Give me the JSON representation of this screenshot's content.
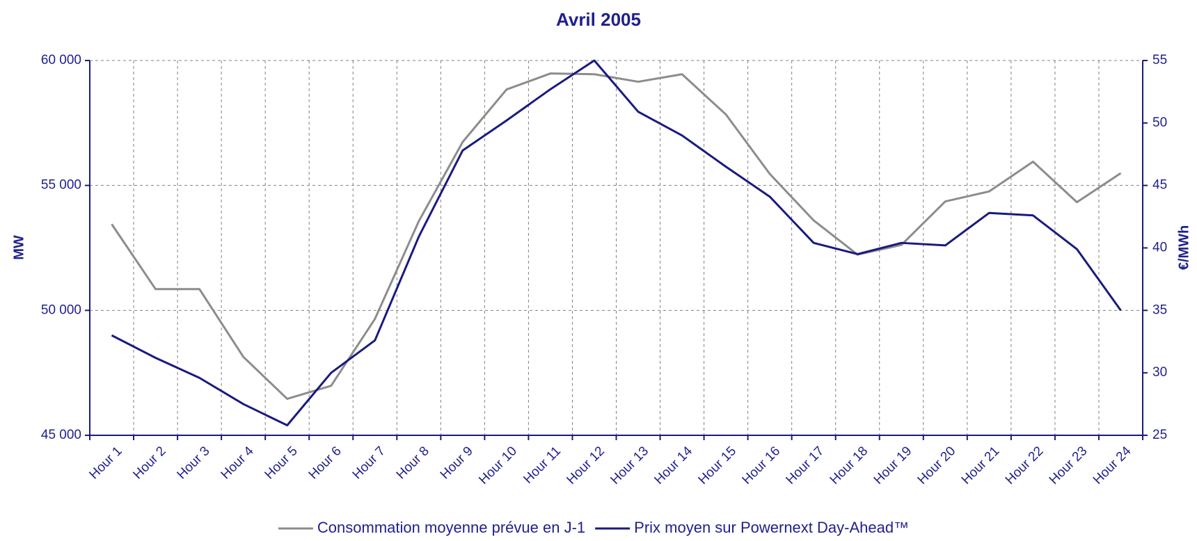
{
  "chart_data": {
    "type": "line",
    "title": "Avril 2005",
    "categories": [
      "Hour 1",
      "Hour 2",
      "Hour 3",
      "Hour 4",
      "Hour 5",
      "Hour 6",
      "Hour 7",
      "Hour 8",
      "Hour 9",
      "Hour 10",
      "Hour 11",
      "Hour 12",
      "Hour 13",
      "Hour 14",
      "Hour 15",
      "Hour 16",
      "Hour 17",
      "Hour 18",
      "Hour 19",
      "Hour 20",
      "Hour 21",
      "Hour 22",
      "Hour 23",
      "Hour 24"
    ],
    "series": [
      {
        "name": "Consommation moyenne prévue en J-1",
        "color": "#8c8c8c",
        "axis": "y",
        "values": [
          53450,
          50850,
          50850,
          48140,
          46460,
          46980,
          49660,
          53570,
          56740,
          58840,
          59480,
          59450,
          59150,
          59450,
          57840,
          55460,
          53600,
          52230,
          52620,
          54360,
          54760,
          55950,
          54330,
          55490
        ]
      },
      {
        "name": "Prix moyen sur Powernext Day-Ahead™",
        "color": "#1a1a80",
        "axis": "y2",
        "values": [
          33.0,
          31.2,
          29.6,
          27.5,
          25.8,
          30.0,
          32.6,
          40.9,
          47.8,
          50.2,
          52.7,
          55.0,
          50.9,
          49.0,
          46.5,
          44.1,
          40.4,
          39.5,
          40.4,
          40.2,
          42.8,
          42.6,
          39.9,
          35.0
        ]
      }
    ],
    "ylabel": "MW",
    "y2label": "€/MWh",
    "ylim": [
      45000,
      60000
    ],
    "yticks": [
      {
        "value": 45000,
        "label": "45 000"
      },
      {
        "value": 50000,
        "label": "50 000"
      },
      {
        "value": 55000,
        "label": "55 000"
      },
      {
        "value": 60000,
        "label": "60 000"
      }
    ],
    "y2lim": [
      25,
      55
    ],
    "y2ticks": [
      25,
      30,
      35,
      40,
      45,
      50,
      55
    ],
    "grid": true,
    "legend": "bottom"
  }
}
